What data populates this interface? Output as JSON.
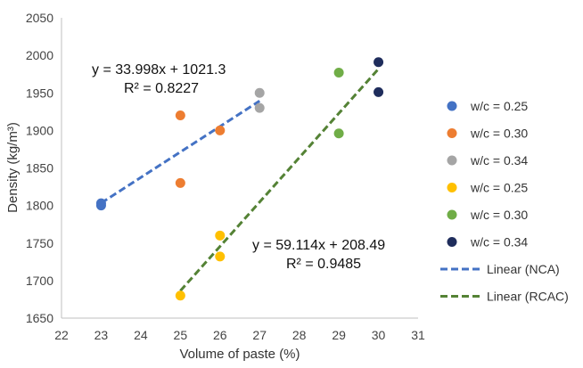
{
  "chart_data": {
    "type": "scatter",
    "xlabel": "Volume of paste (%)",
    "ylabel": "Density (kg/m³)",
    "xlim": [
      22,
      31
    ],
    "ylim": [
      1650,
      2050
    ],
    "xticks": [
      22,
      23,
      24,
      25,
      26,
      27,
      28,
      29,
      30,
      31
    ],
    "yticks": [
      1650,
      1700,
      1750,
      1800,
      1850,
      1900,
      1950,
      2000,
      2050
    ],
    "grid": false,
    "legend_position": "right",
    "series": [
      {
        "name": "w/c = 0.25",
        "color": "#4472C4",
        "points": [
          [
            23,
            1800
          ],
          [
            23,
            1803
          ]
        ]
      },
      {
        "name": "w/c = 0.30",
        "color": "#ED7D31",
        "points": [
          [
            25,
            1920
          ],
          [
            25,
            1830
          ],
          [
            26,
            1900
          ]
        ]
      },
      {
        "name": "w/c = 0.34",
        "color": "#A5A5A5",
        "points": [
          [
            27,
            1950
          ],
          [
            27,
            1930
          ]
        ]
      },
      {
        "name": "w/c = 0.25",
        "color": "#FFC000",
        "points": [
          [
            25,
            1680
          ],
          [
            26,
            1760
          ],
          [
            26,
            1732
          ]
        ]
      },
      {
        "name": "w/c = 0.30",
        "color": "#70AD47",
        "points": [
          [
            29,
            1977
          ],
          [
            29,
            1896
          ]
        ]
      },
      {
        "name": "w/c = 0.34",
        "color": "#1F2D5C",
        "points": [
          [
            30,
            1991
          ],
          [
            30,
            1951
          ]
        ]
      }
    ],
    "trendlines": [
      {
        "name": "Linear (NCA)",
        "color": "#4472C4",
        "x_range": [
          23,
          27
        ],
        "slope": 33.998,
        "intercept": 1021.3,
        "equation": "y = 33.998x + 1021.3",
        "r2": "R² = 0.8227"
      },
      {
        "name": "Linear (RCAC)",
        "color": "#548235",
        "x_range": [
          25,
          30
        ],
        "slope": 59.114,
        "intercept": 208.49,
        "equation": "y = 59.114x + 208.49",
        "r2": "R² = 0.9485"
      }
    ]
  }
}
